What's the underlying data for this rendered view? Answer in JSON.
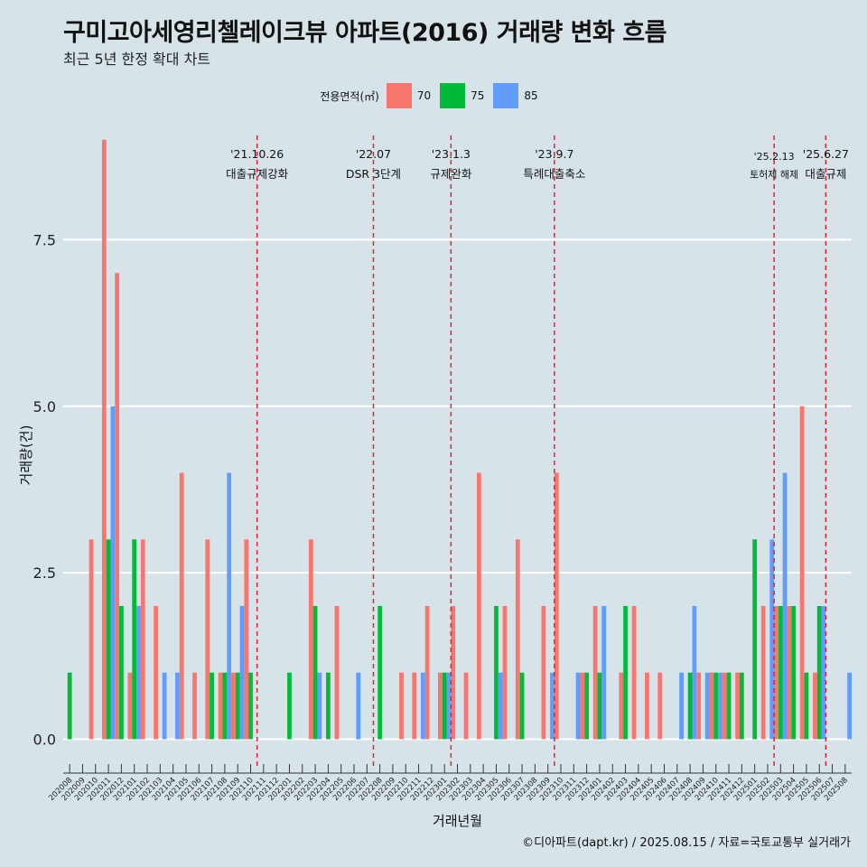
{
  "title": "구미고아세영리첼레이크뷰 아파트(2016) 거래량 변화 흐름",
  "subtitle": "최근 5년 한정 확대 차트",
  "caption": "©디아파트(dapt.kr) / 2025.08.15 / 자료=국토교통부 실거래가",
  "legend": {
    "title": "전용면적(㎡)",
    "items": [
      {
        "label": "70",
        "color": "#f8766d"
      },
      {
        "label": "75",
        "color": "#00ba38"
      },
      {
        "label": "85",
        "color": "#619cff"
      }
    ]
  },
  "chart_data": {
    "type": "bar",
    "xlabel": "거래년월",
    "ylabel": "거래량(건)",
    "ylim": [
      -0.4,
      9.2
    ],
    "yticks": [
      0,
      2.5,
      5,
      7.5
    ],
    "ytick_labels": [
      "0.0",
      "2.5",
      "5.0",
      "7.5"
    ],
    "grid": true,
    "legend_position": "top",
    "categories": [
      "202008",
      "202009",
      "202010",
      "202011",
      "202012",
      "202101",
      "202102",
      "202103",
      "202104",
      "202105",
      "202106",
      "202107",
      "202108",
      "202109",
      "202110",
      "202111",
      "202112",
      "202201",
      "202202",
      "202203",
      "202204",
      "202205",
      "202206",
      "202207",
      "202208",
      "202209",
      "202210",
      "202211",
      "202212",
      "202301",
      "202302",
      "202303",
      "202304",
      "202305",
      "202306",
      "202307",
      "202308",
      "202309",
      "202310",
      "202311",
      "202312",
      "202401",
      "202402",
      "202403",
      "202404",
      "202405",
      "202406",
      "202407",
      "202408",
      "202409",
      "202410",
      "202411",
      "202412",
      "202501",
      "202502",
      "202503",
      "202504",
      "202505",
      "202506",
      "202507",
      "202508"
    ],
    "series": [
      {
        "name": "70",
        "color": "#f8766d",
        "values": [
          0,
          0,
          3,
          9,
          7,
          1,
          3,
          2,
          0,
          4,
          1,
          3,
          1,
          1,
          3,
          0,
          0,
          0,
          0,
          3,
          0,
          2,
          0,
          0,
          0,
          0,
          1,
          1,
          2,
          1,
          2,
          1,
          4,
          0,
          2,
          3,
          0,
          2,
          4,
          0,
          1,
          2,
          0,
          1,
          2,
          1,
          1,
          0,
          0,
          1,
          1,
          1,
          1,
          0,
          2,
          2,
          2,
          5,
          1,
          0,
          0
        ]
      },
      {
        "name": "75",
        "color": "#00ba38",
        "values": [
          1,
          0,
          0,
          3,
          2,
          3,
          0,
          0,
          0,
          0,
          0,
          1,
          1,
          1,
          1,
          0,
          0,
          1,
          0,
          2,
          1,
          0,
          0,
          0,
          2,
          0,
          0,
          0,
          0,
          1,
          0,
          0,
          0,
          2,
          0,
          1,
          0,
          0,
          0,
          0,
          1,
          1,
          0,
          2,
          0,
          0,
          0,
          0,
          1,
          0,
          1,
          1,
          1,
          3,
          0,
          2,
          2,
          1,
          2,
          0,
          0
        ]
      },
      {
        "name": "85",
        "color": "#619cff",
        "values": [
          0,
          0,
          0,
          5,
          0,
          2,
          0,
          1,
          1,
          0,
          0,
          0,
          4,
          2,
          0,
          0,
          0,
          0,
          0,
          1,
          0,
          0,
          1,
          0,
          0,
          0,
          0,
          1,
          0,
          1,
          0,
          0,
          0,
          1,
          0,
          0,
          0,
          1,
          0,
          1,
          0,
          2,
          0,
          0,
          0,
          0,
          0,
          1,
          2,
          1,
          1,
          0,
          0,
          0,
          3,
          4,
          0,
          0,
          2,
          0,
          1
        ]
      }
    ],
    "events": [
      {
        "after": "202110",
        "date": "'21.10.26",
        "label": "대출규제강화"
      },
      {
        "after": "202207",
        "date": "'22.07",
        "label": "DSR 3단계"
      },
      {
        "after": "202301",
        "date": "'23.1.3",
        "label": "규제완화"
      },
      {
        "after": "202309",
        "date": "'23.9.7",
        "label": "특례대출축소"
      },
      {
        "after": "202502",
        "date": "'25.2.13",
        "label": "토허제 해제"
      },
      {
        "after": "202506",
        "date": "'25.6.27",
        "label": "대출규제"
      }
    ]
  }
}
